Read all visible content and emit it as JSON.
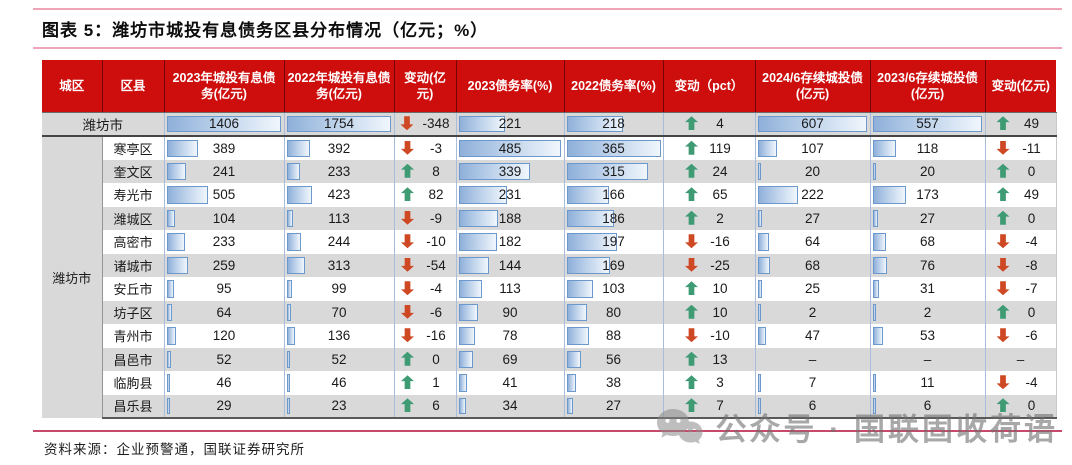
{
  "figure": {
    "title": "图表 5：潍坊市城投有息债务区县分布情况（亿元；%）",
    "source": "资料来源：企业预警通，国联证券研究所",
    "watermark": "公众号 · 国联固收荷语"
  },
  "table": {
    "columns": [
      "城区",
      "区县",
      "2023年城投有息债务(亿元)",
      "2022年城投有息债务(亿元)",
      "变动(亿元)",
      "2023债务率(%)",
      "2022债务率(%)",
      "变动（pct）",
      "2024/6存续城投债(亿元)",
      "2023/6存续城投债(亿元)",
      "变动(亿元)"
    ],
    "region": "潍坊市",
    "total_row": {
      "name": "潍坊市",
      "debt_2023": 1406,
      "debt_2022": 1754,
      "debt_change": -348,
      "ratio_2023": 221,
      "ratio_2022": 218,
      "ratio_change": 4,
      "bond_2024h1": 607,
      "bond_2023h1": 557,
      "bond_change": 49
    },
    "rows": [
      {
        "county": "寒亭区",
        "debt_2023": 389,
        "debt_2022": 392,
        "debt_change": -3,
        "ratio_2023": 485,
        "ratio_2022": 365,
        "ratio_change": 119,
        "bond_2024h1": 107,
        "bond_2023h1": 118,
        "bond_change": -11
      },
      {
        "county": "奎文区",
        "debt_2023": 241,
        "debt_2022": 233,
        "debt_change": 8,
        "ratio_2023": 339,
        "ratio_2022": 315,
        "ratio_change": 24,
        "bond_2024h1": 20,
        "bond_2023h1": 20,
        "bond_change": 0
      },
      {
        "county": "寿光市",
        "debt_2023": 505,
        "debt_2022": 423,
        "debt_change": 82,
        "ratio_2023": 231,
        "ratio_2022": 166,
        "ratio_change": 65,
        "bond_2024h1": 222,
        "bond_2023h1": 173,
        "bond_change": 49
      },
      {
        "county": "潍城区",
        "debt_2023": 104,
        "debt_2022": 113,
        "debt_change": -9,
        "ratio_2023": 188,
        "ratio_2022": 186,
        "ratio_change": 2,
        "bond_2024h1": 27,
        "bond_2023h1": 27,
        "bond_change": 0
      },
      {
        "county": "高密市",
        "debt_2023": 233,
        "debt_2022": 244,
        "debt_change": -10,
        "ratio_2023": 182,
        "ratio_2022": 197,
        "ratio_change": -16,
        "bond_2024h1": 64,
        "bond_2023h1": 68,
        "bond_change": -4
      },
      {
        "county": "诸城市",
        "debt_2023": 259,
        "debt_2022": 313,
        "debt_change": -54,
        "ratio_2023": 144,
        "ratio_2022": 169,
        "ratio_change": -25,
        "bond_2024h1": 68,
        "bond_2023h1": 76,
        "bond_change": -8
      },
      {
        "county": "安丘市",
        "debt_2023": 95,
        "debt_2022": 99,
        "debt_change": -4,
        "ratio_2023": 113,
        "ratio_2022": 103,
        "ratio_change": 10,
        "bond_2024h1": 25,
        "bond_2023h1": 31,
        "bond_change": -7
      },
      {
        "county": "坊子区",
        "debt_2023": 64,
        "debt_2022": 70,
        "debt_change": -6,
        "ratio_2023": 90,
        "ratio_2022": 80,
        "ratio_change": 10,
        "bond_2024h1": 2,
        "bond_2023h1": 2,
        "bond_change": 0
      },
      {
        "county": "青州市",
        "debt_2023": 120,
        "debt_2022": 136,
        "debt_change": -16,
        "ratio_2023": 78,
        "ratio_2022": 88,
        "ratio_change": -10,
        "bond_2024h1": 47,
        "bond_2023h1": 53,
        "bond_change": -6
      },
      {
        "county": "昌邑市",
        "debt_2023": 52,
        "debt_2022": 52,
        "debt_change": 0,
        "ratio_2023": 69,
        "ratio_2022": 56,
        "ratio_change": 13,
        "bond_2024h1": "–",
        "bond_2023h1": "–",
        "bond_change": "–"
      },
      {
        "county": "临朐县",
        "debt_2023": 46,
        "debt_2022": 46,
        "debt_change": 1,
        "ratio_2023": 41,
        "ratio_2022": 38,
        "ratio_change": 3,
        "bond_2024h1": 7,
        "bond_2023h1": 11,
        "bond_change": -4
      },
      {
        "county": "昌乐县",
        "debt_2023": 29,
        "debt_2022": 23,
        "debt_change": 6,
        "ratio_2023": 34,
        "ratio_2022": 27,
        "ratio_change": 7,
        "bond_2024h1": 6,
        "bond_2023h1": 6,
        "bond_change": 0
      }
    ]
  },
  "colors": {
    "header_bg": "#ce0d0d",
    "stripe_gray": "#d9d9d9",
    "bar_blue": "#8fb0da",
    "bar_border": "#6d98cc",
    "arrow_up": "#3e9b74",
    "arrow_down": "#cd4823",
    "pink_rule": "#efa4b8",
    "source_rule": "#c84a6a"
  }
}
